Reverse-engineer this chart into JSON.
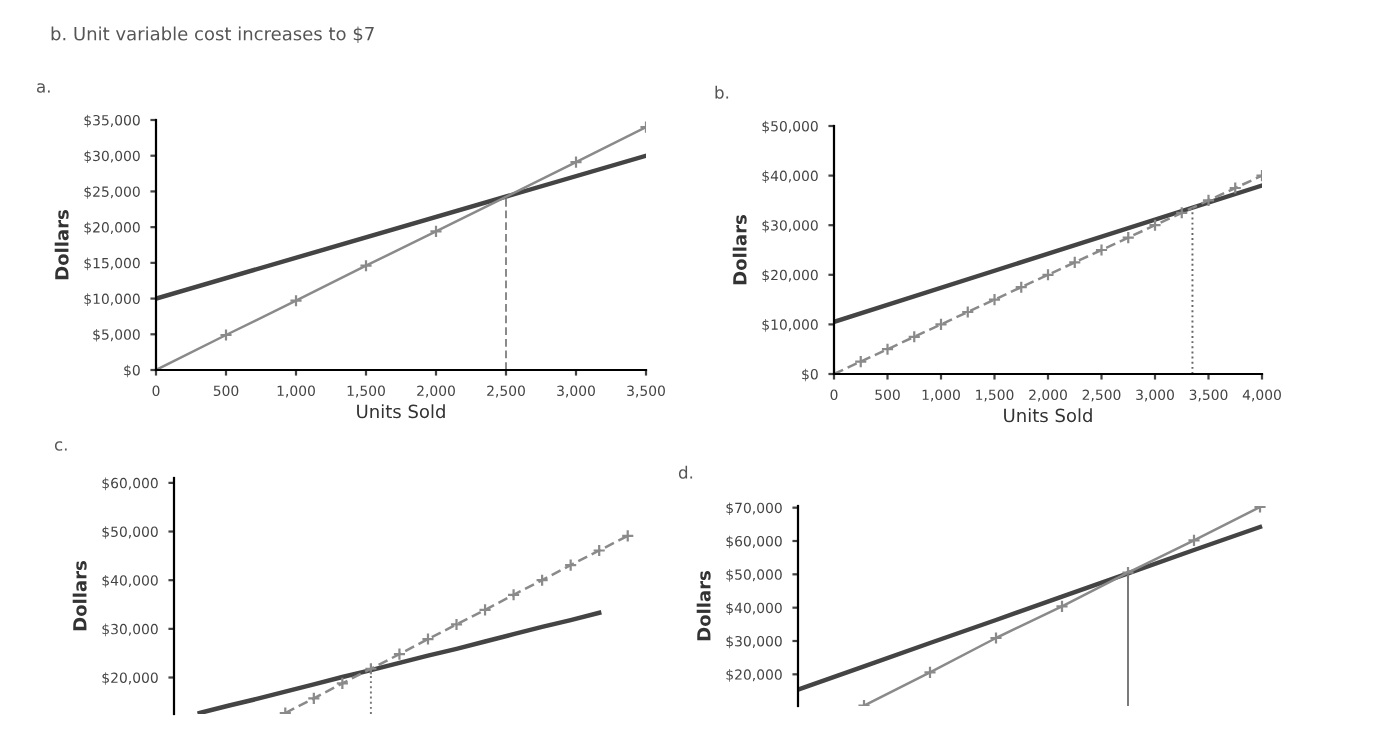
{
  "chart_data": [
    {
      "type": "line",
      "title": "a.",
      "annotations": [
        "b. Unit variable cost increases to $7"
      ],
      "xlabel": "Units Sold",
      "ylabel": "Dollars",
      "xlim": [
        0,
        3500
      ],
      "xticks": [
        0,
        {
          "value": 500,
          "label": "500"
        },
        {
          "value": 1000,
          "label": "1,000"
        },
        {
          "value": 1500,
          "label": "1,500"
        },
        {
          "value": 2000,
          "label": "2,000"
        },
        {
          "value": 2500,
          "label": "2,500"
        },
        {
          "value": 3000,
          "label": "3,000"
        },
        {
          "value": 3500,
          "label": "3,500"
        }
      ],
      "ylim": [
        0,
        35000
      ],
      "yticks": [
        {
          "value": 0,
          "label": "$0"
        },
        {
          "value": 5000,
          "label": "$5,000"
        },
        {
          "value": 10000,
          "label": "$10,000"
        },
        {
          "value": 15000,
          "label": "$15,000"
        },
        {
          "value": 20000,
          "label": "$20,000"
        },
        {
          "value": 25000,
          "label": "$25,000"
        },
        {
          "value": 30000,
          "label": "$30,000"
        },
        {
          "value": 35000,
          "label": "$35,000"
        }
      ],
      "series": [
        {
          "color": "#444444",
          "x": [
            0,
            3500
          ],
          "values": [
            10000,
            30000
          ],
          "marker": "none",
          "line_style": "solid"
        },
        {
          "color": "#8a8a8a",
          "x": [
            0,
            500,
            1000,
            1500,
            2000,
            3000,
            3500
          ],
          "values": [
            0,
            4900,
            9700,
            14600,
            19400,
            29100,
            34000
          ],
          "marker": "cross",
          "line_style": "solid"
        }
      ],
      "ref_lines": [
        {
          "axis": "x",
          "value": 2500,
          "label": null,
          "line_style": "dashed",
          "color": "#888888"
        }
      ],
      "grid": false,
      "legend": false
    },
    {
      "type": "line",
      "title": "b.",
      "xlabel": "Units Sold",
      "ylabel": "Dollars",
      "xlim": [
        0,
        4000
      ],
      "xticks": [
        0,
        {
          "value": 500,
          "label": "500"
        },
        {
          "value": 1000,
          "label": "1,000"
        },
        {
          "value": 1500,
          "label": "1,500"
        },
        {
          "value": 2000,
          "label": "2,000"
        },
        {
          "value": 2500,
          "label": "2,500"
        },
        {
          "value": 3000,
          "label": "3,000"
        },
        {
          "value": 3500,
          "label": "3,500"
        },
        {
          "value": 4000,
          "label": "4,000"
        }
      ],
      "ylim": [
        0,
        50000
      ],
      "yticks": [
        {
          "value": 0,
          "label": "$0"
        },
        {
          "value": 10000,
          "label": "$10,000"
        },
        {
          "value": 20000,
          "label": "$20,000"
        },
        {
          "value": 30000,
          "label": "$30,000"
        },
        {
          "value": 40000,
          "label": "$40,000"
        },
        {
          "value": 50000,
          "label": "$50,000"
        }
      ],
      "series": [
        {
          "color": "#444444",
          "x": [
            0,
            4000
          ],
          "values": [
            10500,
            38000
          ],
          "marker": "none",
          "line_style": "solid"
        },
        {
          "color": "#8a8a8a",
          "x": [
            0,
            250,
            500,
            750,
            1000,
            1250,
            1500,
            1750,
            2000,
            2250,
            2500,
            2750,
            3000,
            3250,
            3500,
            3750,
            4000
          ],
          "values": [
            0,
            2500,
            5000,
            7500,
            10000,
            12500,
            15000,
            17500,
            20000,
            22500,
            25000,
            27500,
            30000,
            32500,
            35000,
            37500,
            40000
          ],
          "marker": "cross",
          "line_style": "dashed"
        }
      ],
      "ref_lines": [
        {
          "axis": "x",
          "value": 3350,
          "label": null,
          "line_style": "dotted",
          "color": "#666666"
        }
      ],
      "grid": false,
      "legend": false
    },
    {
      "type": "line",
      "title": "c.",
      "ylabel": "Dollars",
      "tick_labels": "y",
      "categories": [
        null,
        null,
        null,
        null,
        null,
        null,
        null,
        null,
        null,
        null,
        null,
        null,
        null,
        null,
        null,
        null
      ],
      "ylim": [
        12500,
        61000
      ],
      "yticks": [
        {
          "value": 20000,
          "label": "$20,000"
        },
        {
          "value": 30000,
          "label": "$30,000"
        },
        {
          "value": 40000,
          "label": "$40,000"
        },
        {
          "value": 50000,
          "label": "$50,000"
        },
        {
          "value": 60000,
          "label": "$60,000"
        }
      ],
      "series": [
        {
          "color": "#444444",
          "values": [
            12700,
            14200,
            15600,
            17100,
            18600,
            20100,
            21500,
            23000,
            24500,
            25900,
            27400,
            28900,
            30400,
            31800,
            33300,
            null
          ],
          "marker": "none",
          "line_style": "solid"
        },
        {
          "color": "#8a8a8a",
          "values": [
            null,
            null,
            null,
            12700,
            15700,
            18800,
            21800,
            24800,
            27900,
            30900,
            33900,
            37000,
            40000,
            43100,
            46100,
            49100
          ],
          "marker": "cross",
          "line_style": "dashed"
        }
      ],
      "grid": false,
      "legend": false
    },
    {
      "type": "line",
      "title": "d.",
      "ylabel": "Dollars",
      "tick_labels": "y",
      "categories": [
        null,
        null,
        null,
        null,
        null,
        null,
        null,
        null
      ],
      "ylim": [
        10500,
        70500
      ],
      "yticks": [
        {
          "value": 20000,
          "label": "$20,000"
        },
        {
          "value": 30000,
          "label": "$30,000"
        },
        {
          "value": 40000,
          "label": "$40,000"
        },
        {
          "value": 50000,
          "label": "$50,000"
        },
        {
          "value": 60000,
          "label": "$60,000"
        },
        {
          "value": 70000,
          "label": "$70,000"
        }
      ],
      "series": [
        {
          "color": "#444444",
          "values": [
            15400,
            22400,
            29400,
            36300,
            43300,
            50300,
            57300,
            64200
          ],
          "marker": "none",
          "line_style": "solid"
        },
        {
          "color": "#8a8a8a",
          "values": [
            null,
            10600,
            20600,
            30900,
            40400,
            50500,
            60200,
            70200
          ],
          "marker": "cross",
          "line_style": "solid"
        }
      ],
      "grid": false,
      "legend": false
    }
  ]
}
